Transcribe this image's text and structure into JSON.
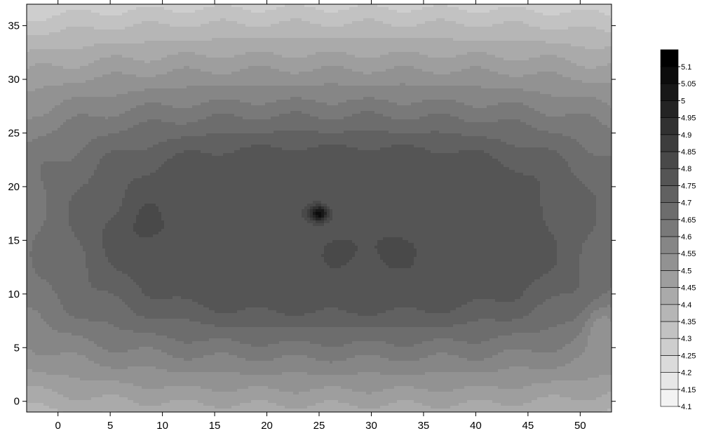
{
  "chart_data": {
    "type": "heatmap",
    "subtype": "filled-contour",
    "title": "",
    "xlabel": "",
    "ylabel": "",
    "xlim": [
      -3,
      53
    ],
    "ylim": [
      -1,
      37
    ],
    "x_ticks": [
      0,
      5,
      10,
      15,
      20,
      25,
      30,
      35,
      40,
      45,
      50
    ],
    "y_ticks": [
      0,
      5,
      10,
      15,
      20,
      25,
      30,
      35
    ],
    "grid": false,
    "legend_position": "right",
    "colorscale": "grayscale, white (4.1) to black (5.1)",
    "color_low": "#ffffff",
    "color_high": "#000000",
    "contour_line_color": "#e2e2e2",
    "levels": [
      4.1,
      4.15,
      4.2,
      4.25,
      4.3,
      4.35,
      4.4,
      4.45,
      4.5,
      4.55,
      4.6,
      4.65,
      4.7,
      4.75,
      4.8,
      4.85,
      4.9,
      4.95,
      5,
      5.05,
      5.1
    ],
    "features": [
      {
        "kind": "plateau",
        "x_range": [
          2,
          49
        ],
        "y_range": [
          9,
          24
        ],
        "value": 4.75
      },
      {
        "kind": "local-max",
        "x": 7,
        "y": 16,
        "value": 4.8
      },
      {
        "kind": "local-max",
        "x": 30,
        "y": 14,
        "value": 4.8
      },
      {
        "kind": "peak",
        "x": 25,
        "y": 17.5,
        "value": 5.1
      },
      {
        "kind": "local-min",
        "x": 52,
        "y": 7,
        "value": 4.35
      }
    ]
  }
}
